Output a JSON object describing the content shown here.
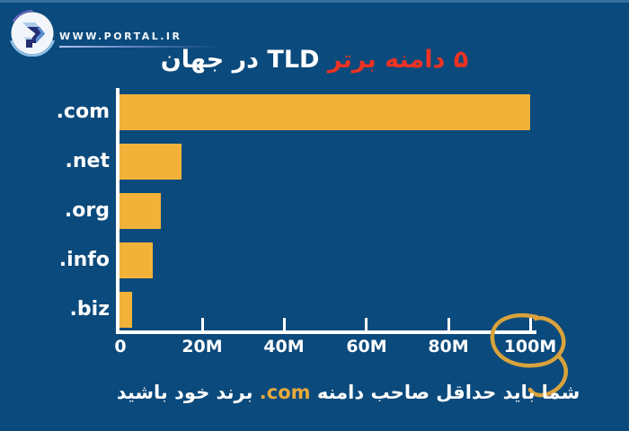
{
  "header": {
    "brand": "WWW.PORTAL.IR"
  },
  "title": {
    "highlight": "۵ دامنه برتر",
    "rest": "TLD در جهان",
    "full": "۵ دامنه برتر TLD در جهان"
  },
  "chart_data": {
    "type": "bar",
    "orientation": "horizontal",
    "title": "۵ دامنه برتر TLD در جهان",
    "categories": [
      ".com",
      ".net",
      ".org",
      ".info",
      ".biz"
    ],
    "values": [
      100,
      15,
      10,
      8,
      3
    ],
    "unit": "M",
    "value_note": "millions of domains, estimated from axis gridlines",
    "x_ticks": [
      "0",
      "20M",
      "40M",
      "60M",
      "80M",
      "100M"
    ],
    "xlim": [
      0,
      100
    ],
    "grid": false,
    "legend": false,
    "annotation": {
      "circled_tick": "100M",
      "style": "hand-drawn ellipse with swoosh tail"
    }
  },
  "footer": {
    "part1": "شما باید حداقل صاحب دامنه",
    "domain": ".com",
    "part2": "برند خود باشید"
  },
  "colors": {
    "background": "#0b4a7c",
    "top_border": "#35709f",
    "bar": "#f2b23a",
    "title_red": "#ee3223",
    "annotation_gold": "#d9a23c",
    "domain_yellow": "#e8a93c",
    "axis_white": "#ffffff"
  }
}
